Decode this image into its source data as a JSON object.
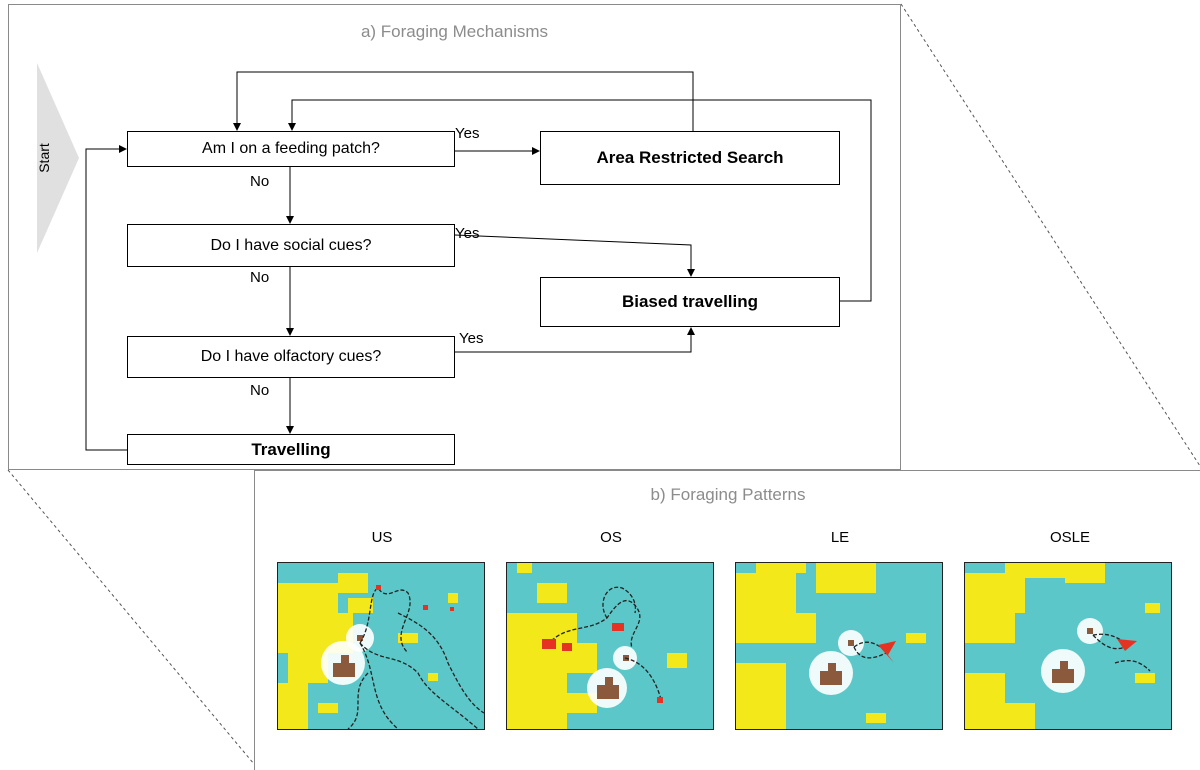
{
  "panel_a": {
    "title": "a) Foraging Mechanisms",
    "start": "Start",
    "boxes": {
      "feeding_patch": "Am I on a feeding patch?",
      "social_cues": "Do I have social cues?",
      "olfactory_cues": "Do I have olfactory cues?",
      "travelling": "Travelling",
      "area_restricted": "Area Restricted Search",
      "biased_travelling": "Biased travelling"
    },
    "edge_labels": {
      "yes1": "Yes",
      "no1": "No",
      "yes2": "Yes",
      "no2": "No",
      "yes3": "Yes",
      "no3": "No"
    }
  },
  "panel_b": {
    "title": "b) Foraging Patterns",
    "patterns": [
      "US",
      "OS",
      "LE",
      "OSLE"
    ]
  },
  "colors": {
    "sea": "#5cc7c8",
    "patch": "#f2e81a",
    "colony": "#8b5a3c",
    "track_highlight": "#e53222"
  }
}
